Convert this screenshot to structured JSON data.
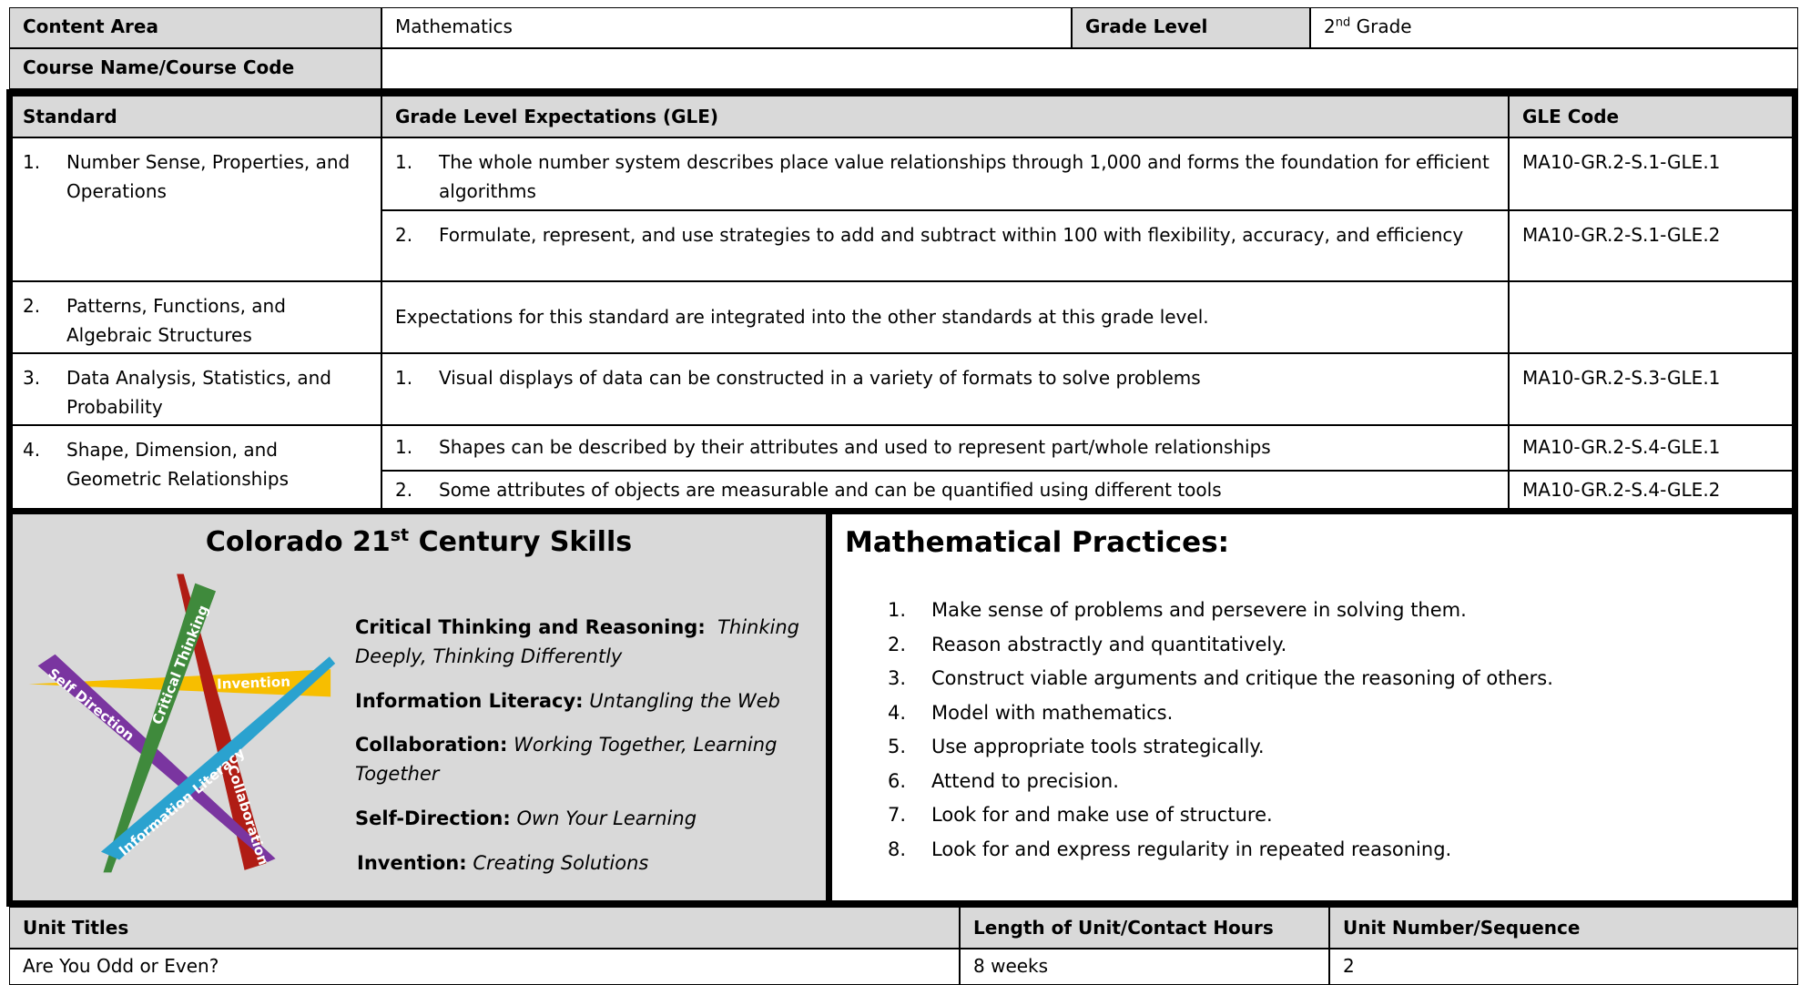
{
  "header": {
    "content_area_label": "Content Area",
    "content_area": "Mathematics",
    "grade_level_label": "Grade Level",
    "grade_level": {
      "number": "2",
      "suffix": "nd",
      "word": "Grade"
    },
    "course_label": "Course Name/Course Code"
  },
  "standards": {
    "headers": [
      "Standard",
      "Grade Level Expectations (GLE)",
      "GLE Code"
    ],
    "rows": [
      {
        "number": "1.",
        "name": "Number Sense, Properties, and Operations",
        "gles": [
          {
            "number": "1.",
            "text": "The whole number system describes place value relationships through 1,000 and forms the foundation for efficient algorithms",
            "code": "MA10-GR.2-S.1-GLE.1"
          },
          {
            "number": "2.",
            "text": "Formulate, represent, and use strategies to add and subtract within 100 with flexibility, accuracy, and efficiency",
            "code": "MA10-GR.2-S.1-GLE.2"
          }
        ]
      },
      {
        "number": "2.",
        "name": "Patterns, Functions, and Algebraic Structures",
        "note": "Expectations for this standard are integrated into the other standards at this grade level."
      },
      {
        "number": "3.",
        "name": "Data Analysis, Statistics, and Probability",
        "gles": [
          {
            "number": "1.",
            "text": "Visual displays of data can be constructed in a variety of formats to solve problems",
            "code": "MA10-GR.2-S.3-GLE.1"
          }
        ]
      },
      {
        "number": "4.",
        "name": "Shape, Dimension, and Geometric Relationships",
        "gles": [
          {
            "number": "1.",
            "text": "Shapes can be described by their attributes and used to represent part/whole relationships",
            "code": "MA10-GR.2-S.4-GLE.1"
          },
          {
            "number": "2.",
            "text": "Some attributes of objects are measurable and can be quantified using different tools",
            "code": "MA10-GR.2-S.4-GLE.2"
          }
        ]
      }
    ]
  },
  "skills": {
    "title": {
      "pre": "Colorado 21",
      "sup": "st",
      "post": " Century Skills"
    },
    "graphic_labels": [
      "Self Direction",
      "Critical Thinking",
      "Invention",
      "Information Literacy",
      "Collaboration"
    ],
    "items": [
      {
        "term": "Critical Thinking and Reasoning:",
        "desc": "Thinking Deeply, Thinking Differently"
      },
      {
        "term": "Information Literacy:",
        "desc": "Untangling the Web"
      },
      {
        "term": "Collaboration:",
        "desc": "Working Together, Learning Together"
      },
      {
        "term": "Self-Direction:",
        "desc": "Own Your Learning"
      },
      {
        "term": "Invention:",
        "desc": "Creating Solutions"
      }
    ]
  },
  "practices": {
    "title": "Mathematical Practices:",
    "items": [
      {
        "number": "1.",
        "text": "Make sense of problems and persevere in solving them."
      },
      {
        "number": "2.",
        "text": "Reason abstractly and quantitatively."
      },
      {
        "number": "3.",
        "text": "Construct viable arguments and critique the reasoning of others."
      },
      {
        "number": "4.",
        "text": "Model with mathematics."
      },
      {
        "number": "5.",
        "text": "Use appropriate tools strategically."
      },
      {
        "number": "6.",
        "text": "Attend to precision."
      },
      {
        "number": "7.",
        "text": "Look for and make use of structure."
      },
      {
        "number": "8.",
        "text": "Look for and express regularity in repeated reasoning."
      }
    ]
  },
  "units": {
    "headers": [
      "Unit Titles",
      "Length of Unit/Contact Hours",
      "Unit Number/Sequence"
    ],
    "rows": [
      [
        "Are You Odd or Even?",
        "8 weeks",
        "2"
      ]
    ]
  }
}
